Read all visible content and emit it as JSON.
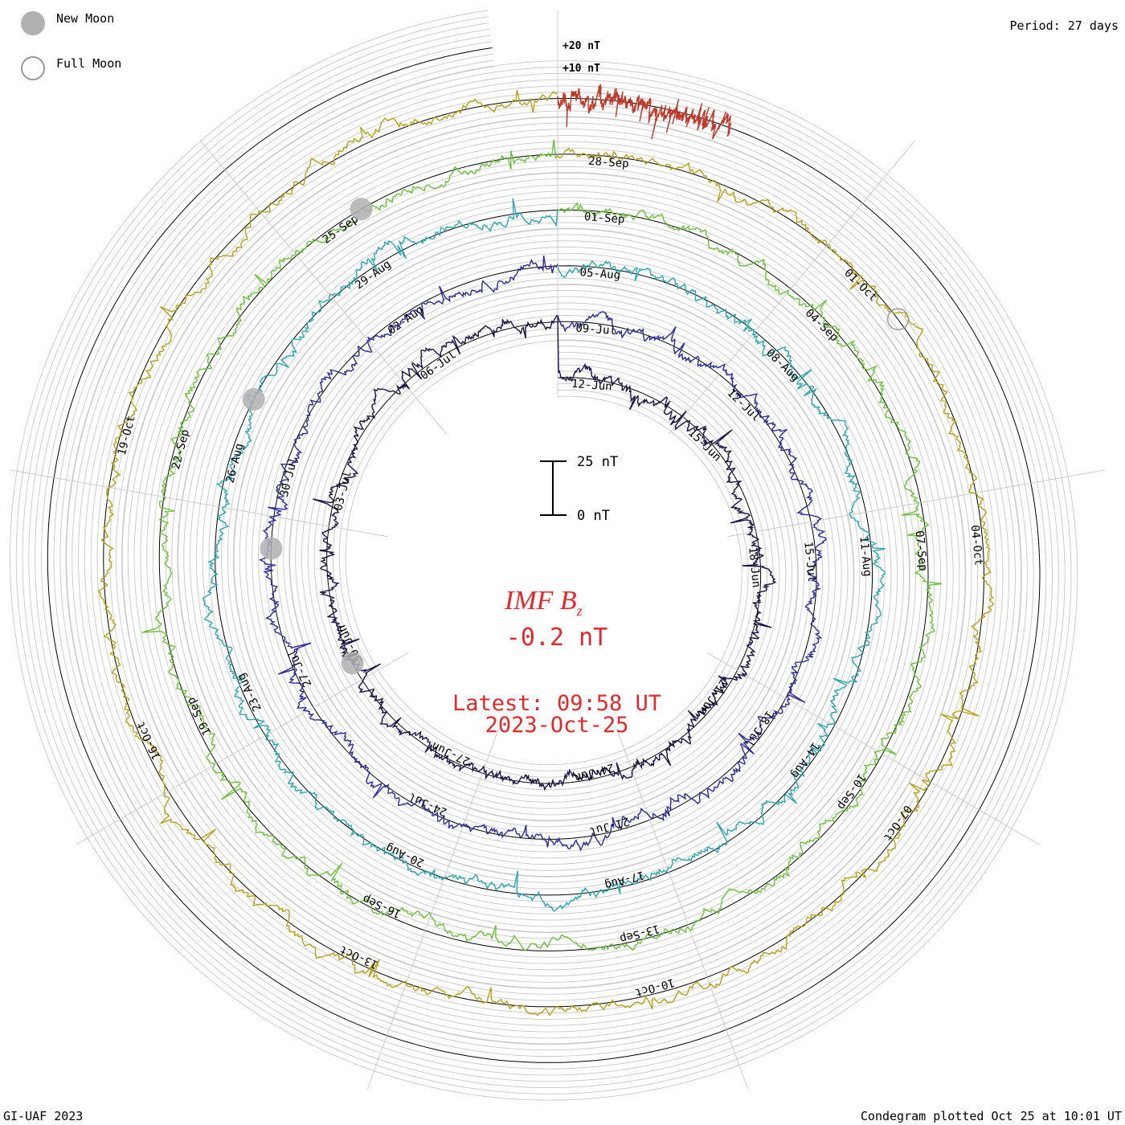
{
  "legend": {
    "new_moon": "New Moon",
    "full_moon": "Full Moon",
    "new_moon_color": "#b0b0b0",
    "full_moon_color": "#999999"
  },
  "period_label": "Period: 27 days",
  "footer": {
    "credit": "GI-UAF 2023",
    "plotted": "Condegram plotted Oct 25 at 10:01 UT"
  },
  "scale_bar": {
    "top_label": "25 nT",
    "bottom_label": "0 nT"
  },
  "center": {
    "title": "IMF B",
    "title_sub": "z",
    "value": "-0.2 nT",
    "latest_label": "Latest: 09:58 UT",
    "latest_date": "2023-Oct-25",
    "color": "#e8272c"
  },
  "chart_data": {
    "type": "condegram",
    "title": "IMF Bz",
    "period_days": 27,
    "units": "nT",
    "ring_scale_labels": [
      "+20 nT",
      "+10 nT"
    ],
    "rings": [
      {
        "start": "12-Jun",
        "color": "#1b1046",
        "labels": [
          "12-Jun",
          "15-Jun",
          "18-Jun",
          "21-Jun",
          "24-Jun",
          "27-Jun",
          "30-Jun",
          "03-Jul",
          "06-Jul"
        ]
      },
      {
        "start": "09-Jul",
        "color": "#2a2a9c",
        "labels": [
          "09-Jul",
          "12-Jul",
          "15-Jul",
          "18-Jul",
          "21-Jul",
          "24-Jul",
          "27-Jul",
          "30-Jul",
          "02-Aug"
        ]
      },
      {
        "start": "05-Aug",
        "color": "#2aa6b0",
        "labels": [
          "05-Aug",
          "08-Aug",
          "11-Aug",
          "14-Aug",
          "17-Aug",
          "20-Aug",
          "23-Aug",
          "26-Aug",
          "29-Aug"
        ]
      },
      {
        "start": "01-Sep",
        "color": "#6cc23a",
        "labels": [
          "01-Sep",
          "04-Sep",
          "07-Sep",
          "10-Sep",
          "13-Sep",
          "16-Sep",
          "19-Sep",
          "22-Sep",
          "25-Sep"
        ]
      },
      {
        "start": "28-Sep",
        "color": "#b8a116",
        "labels": [
          "28-Sep",
          "01-Oct",
          "04-Oct",
          "07-Oct",
          "10-Oct",
          "13-Oct",
          "16-Oct",
          "19-Oct"
        ]
      },
      {
        "start": "25-Oct",
        "color": "#c0392b",
        "labels": []
      }
    ],
    "latest_value": -0.2,
    "latest_time": "09:58 UT",
    "latest_date": "2023-Oct-25",
    "new_moon_marks": [
      0.68,
      0.76,
      0.83,
      0.92
    ],
    "full_moon_marks": [
      0.15
    ]
  }
}
